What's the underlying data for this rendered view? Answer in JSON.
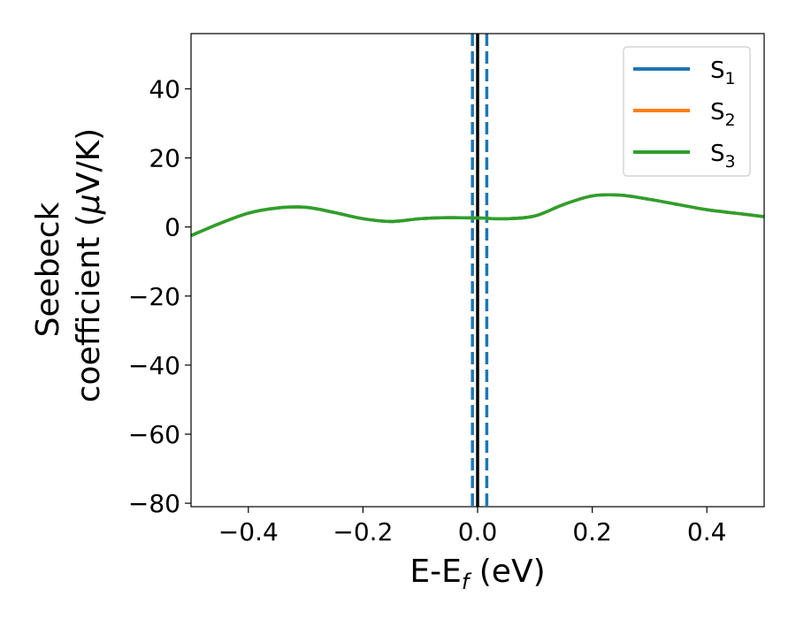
{
  "chart_data": {
    "type": "line",
    "xlabel": "E-E",
    "xlabel_sub": "f",
    "xlabel_unit": " (eV)",
    "ylabel_line1": "Seebeck",
    "ylabel_line2_pre": "coefficient  (",
    "ylabel_mu": "μ",
    "ylabel_line2_post": "V/K)",
    "xlim": [
      -0.5,
      0.5
    ],
    "ylim": [
      -81,
      56
    ],
    "xticks": [
      -0.4,
      -0.2,
      0.0,
      0.2,
      0.4
    ],
    "xtick_labels": [
      "−0.4",
      "−0.2",
      "0.0",
      "0.2",
      "0.4"
    ],
    "yticks": [
      40,
      20,
      0,
      -20,
      -40,
      -60,
      -80
    ],
    "ytick_labels": [
      "40",
      "20",
      "0",
      "−20",
      "−40",
      "−60",
      "−80"
    ],
    "grid": false,
    "legend_position": "top-right",
    "x": [
      -0.5,
      -0.45,
      -0.4,
      -0.35,
      -0.3,
      -0.25,
      -0.2,
      -0.15,
      -0.1,
      -0.05,
      0.0,
      0.05,
      0.1,
      0.15,
      0.2,
      0.25,
      0.3,
      0.35,
      0.4,
      0.45,
      0.5
    ],
    "series": [
      {
        "name": "S",
        "sub": "1",
        "color": "#1f77b4",
        "values": [
          -2.5,
          1.0,
          4.0,
          5.5,
          5.7,
          4.2,
          2.4,
          1.6,
          2.4,
          2.7,
          2.6,
          2.4,
          3.2,
          6.5,
          9.0,
          9.2,
          8.0,
          6.5,
          5.0,
          4.0,
          3.0
        ]
      },
      {
        "name": "S",
        "sub": "2",
        "color": "#ff7f0e",
        "values": [
          -2.5,
          1.0,
          4.0,
          5.5,
          5.7,
          4.2,
          2.4,
          1.6,
          2.4,
          2.7,
          2.6,
          2.4,
          3.2,
          6.5,
          9.0,
          9.2,
          8.0,
          6.5,
          5.0,
          4.0,
          3.0
        ]
      },
      {
        "name": "S",
        "sub": "3",
        "color": "#2ca02c",
        "values": [
          -2.5,
          1.0,
          4.0,
          5.5,
          5.7,
          4.2,
          2.4,
          1.6,
          2.4,
          2.7,
          2.6,
          2.4,
          3.2,
          6.5,
          9.0,
          9.2,
          8.0,
          6.5,
          5.0,
          4.0,
          3.0
        ]
      }
    ],
    "vlines": [
      {
        "x": 0.0,
        "color": "#000000",
        "style": "solid"
      },
      {
        "x": -0.009,
        "color": "#1f77b4",
        "style": "dashed"
      },
      {
        "x": 0.016,
        "color": "#1f77b4",
        "style": "dashed"
      }
    ]
  }
}
